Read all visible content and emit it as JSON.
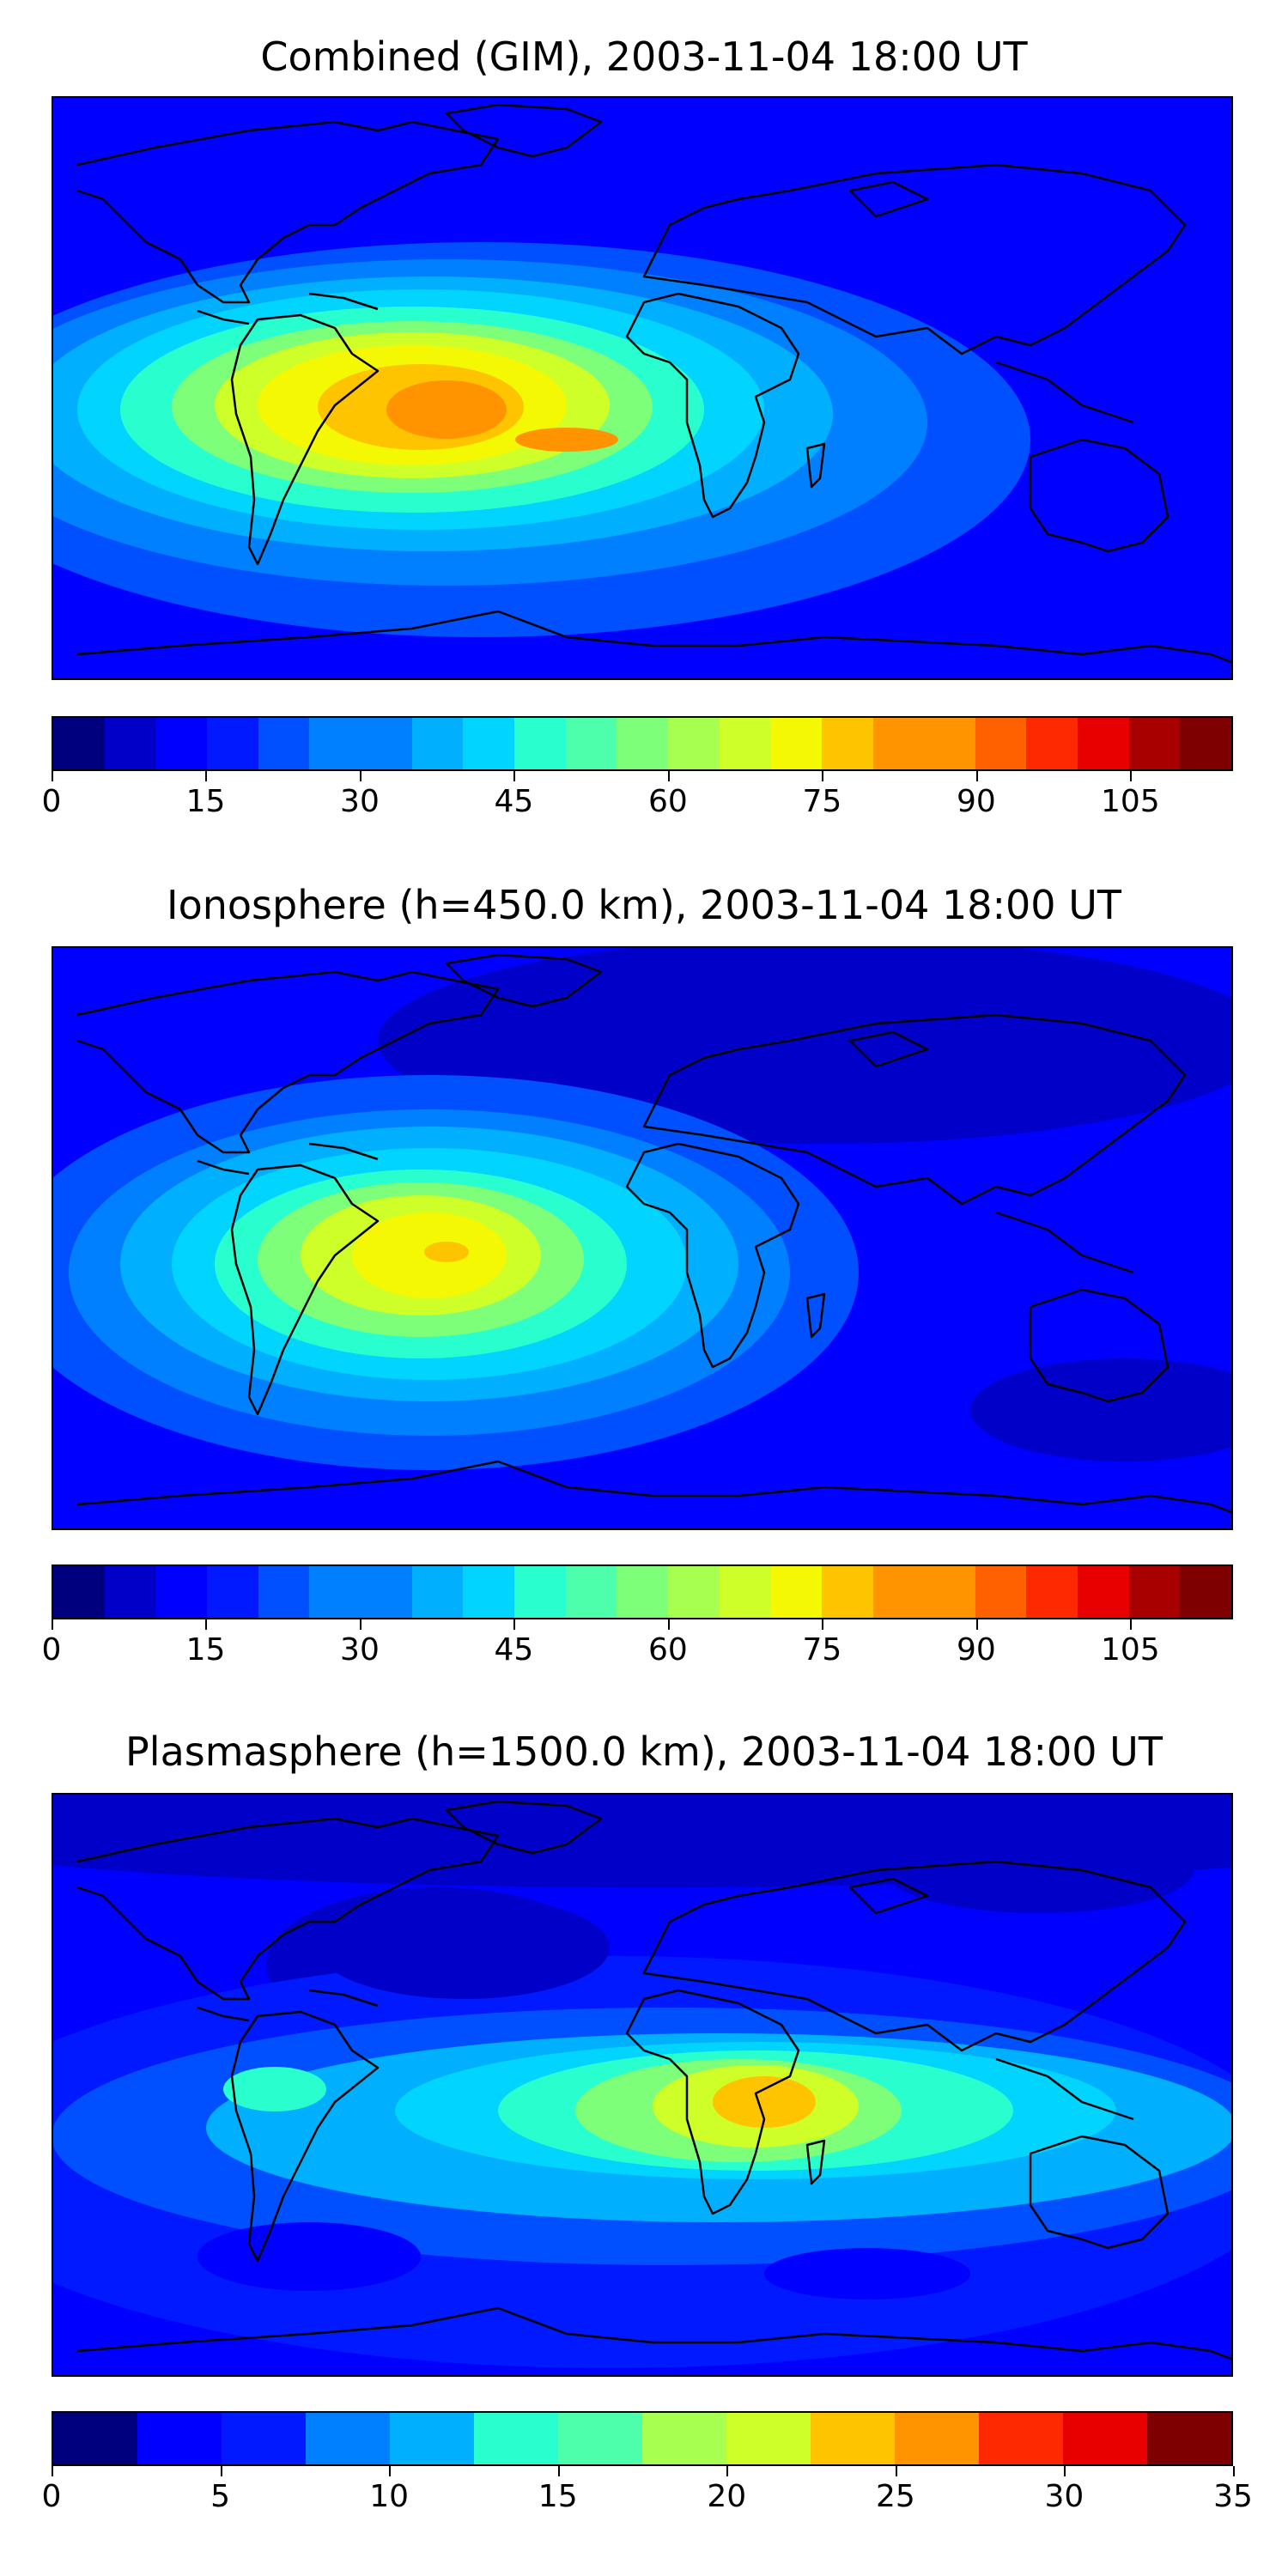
{
  "panels": [
    {
      "title": "Combined (GIM), 2003-11-04 18:00 UT",
      "colorbar": {
        "min": 0,
        "max": 115,
        "levels": 23,
        "ticks": [
          "0",
          "15",
          "30",
          "45",
          "60",
          "75",
          "90",
          "105"
        ],
        "tick_values": [
          0,
          15,
          30,
          45,
          60,
          75,
          90,
          105
        ]
      }
    },
    {
      "title": "Ionosphere  (h=450.0 km), 2003-11-04 18:00 UT",
      "colorbar": {
        "min": 0,
        "max": 115,
        "levels": 23,
        "ticks": [
          "0",
          "15",
          "30",
          "45",
          "60",
          "75",
          "90",
          "105"
        ],
        "tick_values": [
          0,
          15,
          30,
          45,
          60,
          75,
          90,
          105
        ]
      }
    },
    {
      "title": "Plasmasphere (h=1500.0 km), 2003-11-04 18:00 UT",
      "colorbar": {
        "min": 0,
        "max": 35,
        "levels": 14,
        "ticks": [
          "0",
          "5",
          "10",
          "15",
          "20",
          "25",
          "30",
          "35"
        ],
        "tick_values": [
          0,
          5,
          10,
          15,
          20,
          25,
          30,
          35
        ]
      }
    }
  ],
  "colors": {
    "jet": [
      "#00007f",
      "#0000c8",
      "#0000ff",
      "#0019ff",
      "#0050ff",
      "#0080ff",
      "#00b0ff",
      "#00d4ff",
      "#29ffce",
      "#4dffaa",
      "#7dff7a",
      "#a7ff50",
      "#ceff29",
      "#f4f802",
      "#ffc400",
      "#ff9400",
      "#ff6000",
      "#ff2900",
      "#e80000",
      "#a80000",
      "#7f0000"
    ],
    "background_low": "#0000ff"
  }
}
